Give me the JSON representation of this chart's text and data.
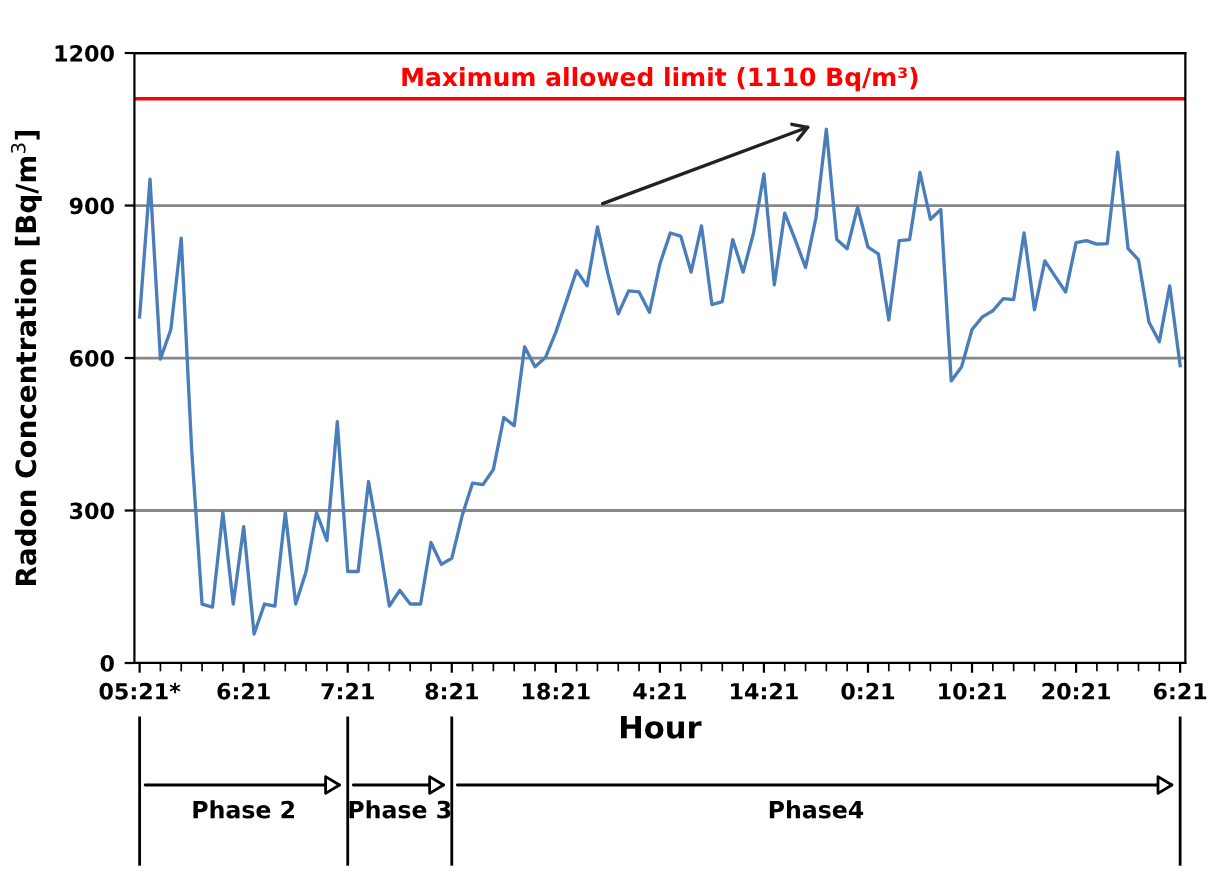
{
  "chart_data": {
    "type": "line",
    "xlabel": "Hour",
    "ylabel": "Radon Concentration [Bq/m$^{3}$]",
    "categories": [
      "05:21*",
      null,
      null,
      null,
      null,
      null,
      null,
      null,
      null,
      null,
      "6:21",
      null,
      null,
      null,
      null,
      null,
      null,
      null,
      null,
      null,
      "7:21",
      null,
      null,
      null,
      null,
      null,
      null,
      null,
      null,
      null,
      "8:21",
      null,
      null,
      null,
      null,
      null,
      null,
      null,
      null,
      null,
      "18:21",
      null,
      null,
      null,
      null,
      null,
      null,
      null,
      null,
      null,
      "4:21",
      null,
      null,
      null,
      null,
      null,
      null,
      null,
      null,
      null,
      "14:21",
      null,
      null,
      null,
      null,
      null,
      null,
      null,
      null,
      null,
      "0:21",
      null,
      null,
      null,
      null,
      null,
      null,
      null,
      null,
      null,
      "10:21",
      null,
      null,
      null,
      null,
      null,
      null,
      null,
      null,
      null,
      "20:21",
      null,
      null,
      null,
      null,
      null,
      null,
      null,
      null,
      null,
      "6:21"
    ],
    "series": [
      {
        "color": "#4a7ebb",
        "values": [
          681,
          952,
          598,
          656,
          836,
          420,
          116,
          110,
          296,
          116,
          268,
          57,
          116,
          112,
          296,
          116,
          180,
          296,
          241,
          475,
          180,
          180,
          357,
          241,
          112,
          143,
          116,
          116,
          237,
          194,
          206,
          290,
          354,
          351,
          381,
          483,
          467,
          622,
          583,
          601,
          651,
          711,
          772,
          742,
          858,
          766,
          687,
          732,
          730,
          690,
          785,
          846,
          840,
          769,
          860,
          705,
          711,
          833,
          769,
          846,
          962,
          744,
          885,
          833,
          778,
          876,
          1050,
          833,
          815,
          897,
          818,
          805,
          675,
          831,
          833,
          965,
          873,
          892,
          555,
          583,
          656,
          681,
          693,
          717,
          715,
          846,
          695,
          791,
          760,
          730,
          827,
          831,
          824,
          825,
          1005,
          815,
          793,
          671,
          632,
          742,
          585
        ]
      }
    ],
    "ylim": [
      0,
      1200
    ],
    "yticks": [
      0,
      300,
      600,
      900,
      1200
    ],
    "grid": "y",
    "marker": "none",
    "line_style": "solid",
    "ref_lines": [
      {
        "axis": "y",
        "value": 1110,
        "label": "Maximum allowed limit (1110 Bq/m³)",
        "color": "#ff0000"
      }
    ],
    "annotations": [
      "Phase 2",
      "Phase 3",
      "Phase4"
    ]
  }
}
